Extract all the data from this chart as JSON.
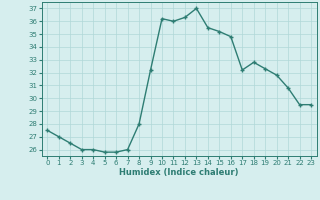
{
  "x": [
    0,
    1,
    2,
    3,
    4,
    5,
    6,
    7,
    8,
    9,
    10,
    11,
    12,
    13,
    14,
    15,
    16,
    17,
    18,
    19,
    20,
    21,
    22,
    23
  ],
  "y": [
    27.5,
    27.0,
    26.5,
    26.0,
    26.0,
    25.8,
    25.8,
    26.0,
    28.0,
    32.2,
    36.2,
    36.0,
    36.3,
    37.0,
    35.5,
    35.2,
    34.8,
    32.2,
    32.8,
    32.3,
    31.8,
    30.8,
    29.5,
    29.5
  ],
  "line_color": "#2e7d73",
  "marker": "+",
  "bg_color": "#d6eeee",
  "grid_color": "#b0d8d8",
  "xlabel": "Humidex (Indice chaleur)",
  "xlim": [
    -0.5,
    23.5
  ],
  "ylim": [
    25.5,
    37.5
  ],
  "yticks": [
    26,
    27,
    28,
    29,
    30,
    31,
    32,
    33,
    34,
    35,
    36,
    37
  ],
  "xticks": [
    0,
    1,
    2,
    3,
    4,
    5,
    6,
    7,
    8,
    9,
    10,
    11,
    12,
    13,
    14,
    15,
    16,
    17,
    18,
    19,
    20,
    21,
    22,
    23
  ],
  "tick_color": "#2e7d73",
  "label_color": "#2e7d73",
  "linewidth": 1.0,
  "markersize": 3.5,
  "markeredgewidth": 1.0,
  "tick_fontsize": 5.0,
  "xlabel_fontsize": 6.0
}
